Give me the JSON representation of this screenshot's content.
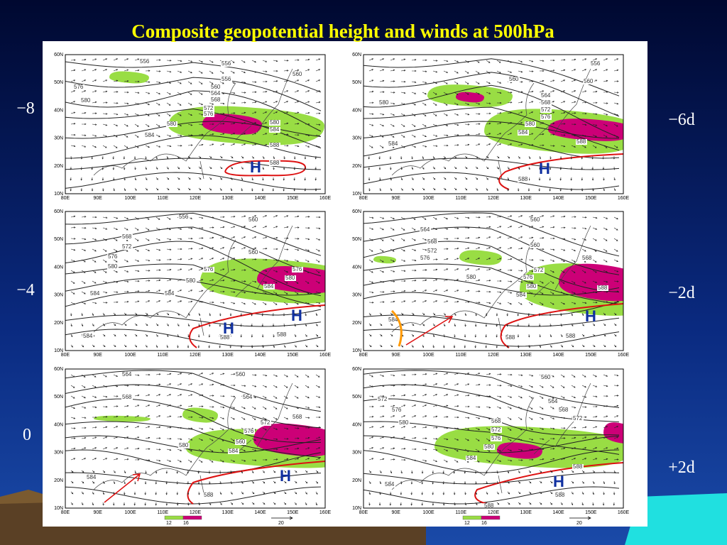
{
  "title": "Composite geopotential height and winds at 500hPa",
  "left_labels": [
    "−8",
    "−4",
    "0"
  ],
  "right_labels": [
    "−6d",
    "−2d",
    "+2d"
  ],
  "lat_labels": [
    "60N",
    "50N",
    "40N",
    "30N",
    "20N",
    "10N"
  ],
  "lon_labels": [
    "80E",
    "90E",
    "100E",
    "110E",
    "120E",
    "130E",
    "140E",
    "150E",
    "160E"
  ],
  "panels": [
    {
      "contour_labels": [
        "556",
        "556",
        "556",
        "560",
        "564",
        "568",
        "572",
        "576",
        "576",
        "580",
        "580",
        "584",
        "580",
        "584",
        "588",
        "588",
        "560"
      ],
      "highs": [
        "H"
      ]
    },
    {
      "contour_labels": [
        "556",
        "560",
        "560",
        "564",
        "568",
        "572",
        "576",
        "580",
        "580",
        "584",
        "584",
        "588",
        "588"
      ],
      "highs": [
        "H"
      ]
    },
    {
      "contour_labels": [
        "556",
        "560",
        "560",
        "568",
        "572",
        "576",
        "580",
        "576",
        "580",
        "576",
        "580",
        "584",
        "584",
        "584",
        "584",
        "588",
        "588"
      ],
      "highs": [
        "H",
        "H"
      ]
    },
    {
      "contour_labels": [
        "560",
        "564",
        "568",
        "572",
        "576",
        "560",
        "580",
        "572",
        "576",
        "580",
        "584",
        "568",
        "588",
        "584",
        "588",
        "588"
      ],
      "highs": [
        "H"
      ]
    },
    {
      "contour_labels": [
        "564",
        "560",
        "564",
        "568",
        "580",
        "572",
        "576",
        "560",
        "568",
        "584",
        "584",
        "588"
      ],
      "highs": [
        "H"
      ]
    },
    {
      "contour_labels": [
        "560",
        "564",
        "572",
        "576",
        "580",
        "568",
        "572",
        "576",
        "580",
        "568",
        "572",
        "584",
        "584",
        "588",
        "588",
        "588"
      ],
      "highs": [
        "H"
      ]
    }
  ],
  "legend": {
    "labels": [
      "12",
      "16"
    ],
    "vector": "20"
  }
}
